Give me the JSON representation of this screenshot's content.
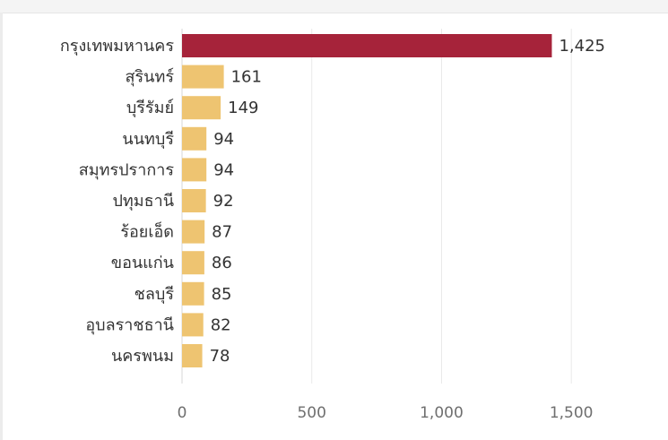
{
  "chart_data": {
    "type": "bar",
    "orientation": "horizontal",
    "categories": [
      "กรุงเทพมหานคร",
      "สุรินทร์",
      "บุรีรัมย์",
      "นนทบุรี",
      "สมุทรปราการ",
      "ปทุมธานี",
      "ร้อยเอ็ด",
      "ขอนแก่น",
      "ชลบุรี",
      "อุบลราชธานี",
      "นครพนม"
    ],
    "values": [
      1425,
      161,
      149,
      94,
      94,
      92,
      87,
      86,
      85,
      82,
      78
    ],
    "value_labels": [
      "1,425",
      "161",
      "149",
      "94",
      "94",
      "92",
      "87",
      "86",
      "85",
      "82",
      "78"
    ],
    "highlight_index": 0,
    "colors": {
      "highlight": "#a6233a",
      "bar": "#eec471",
      "grid": "#e9e9e9"
    },
    "xlim": [
      0,
      1800
    ],
    "xticks": [
      0,
      500,
      1000,
      1500
    ],
    "xtick_labels": [
      "0",
      "500",
      "1,000",
      "1,500"
    ],
    "grid": true,
    "title": "",
    "xlabel": "",
    "ylabel": ""
  }
}
